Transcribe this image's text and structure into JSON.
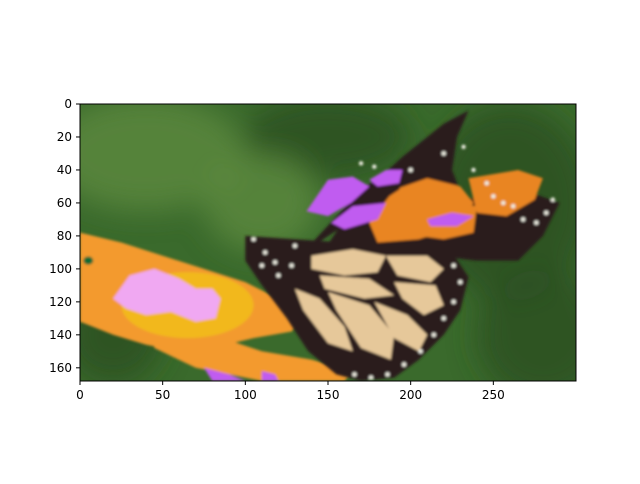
{
  "chart_data": {
    "type": "heatmap",
    "image_width": 300,
    "image_height": 168,
    "xlim": [
      0,
      300
    ],
    "ylim": [
      168,
      0
    ],
    "x_ticks": [
      0,
      50,
      100,
      150,
      200,
      250
    ],
    "y_ticks": [
      0,
      20,
      40,
      60,
      80,
      100,
      120,
      140,
      160
    ],
    "title": "",
    "xlabel": "",
    "ylabel": "",
    "grid": false,
    "colors": {
      "background": "#3a6a2c",
      "leaf_dark": "#2a4f22",
      "leaf_light": "#5c8a3e",
      "flower_orange": "#f39a2e",
      "flower_yellow": "#f2b81e",
      "highlight_pink": "#f0a8f2",
      "wing_black": "#2b1b1f",
      "wing_orange": "#e98520",
      "wing_cream": "#e6c89a",
      "wing_purple": "#c05cf0",
      "spot_white": "#eeeee2"
    }
  }
}
